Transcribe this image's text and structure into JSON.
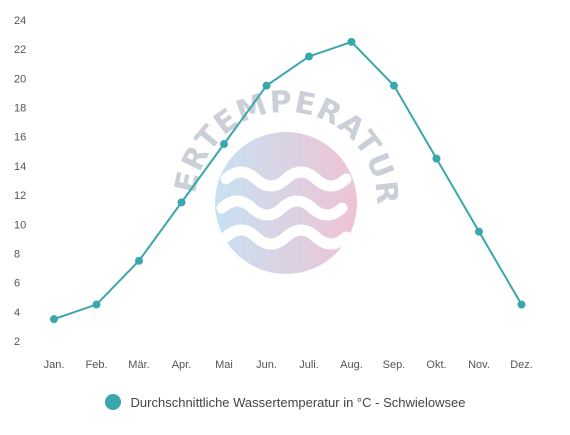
{
  "chart_data": {
    "type": "line",
    "title": "",
    "xlabel": "",
    "ylabel": "",
    "categories": [
      "Jan.",
      "Feb.",
      "Mär.",
      "Apr.",
      "Mai",
      "Jun.",
      "Juli.",
      "Aug.",
      "Sep.",
      "Okt.",
      "Nov.",
      "Dez."
    ],
    "y_ticks": [
      2,
      4,
      6,
      8,
      10,
      12,
      14,
      16,
      18,
      20,
      22,
      24
    ],
    "ylim": [
      2,
      24
    ],
    "grid": false,
    "legend_position": "bottom-center",
    "series": [
      {
        "name": "Durchschnittliche Wassertemperatur in °C - Schwielowsee",
        "color": "#3aa7ac",
        "values": [
          3.5,
          4.5,
          7.5,
          11.5,
          15.5,
          19.5,
          21.5,
          22.5,
          19.5,
          14.5,
          9.5,
          4.5
        ]
      }
    ]
  },
  "watermark": {
    "text": "WASSERTEMPERATUR.ORG",
    "colors": [
      "#b5d8ee",
      "#e8b0c6"
    ]
  }
}
